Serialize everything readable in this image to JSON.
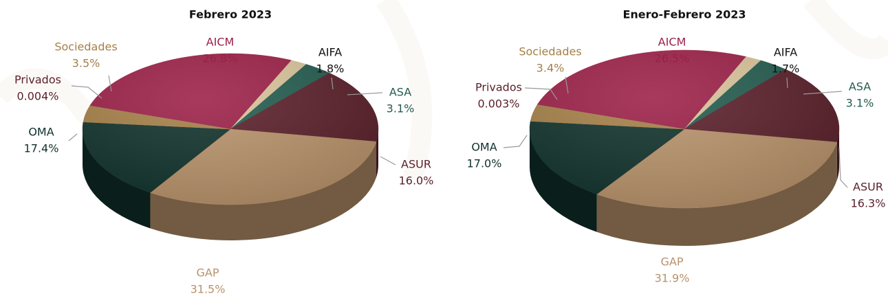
{
  "chart_data": [
    {
      "type": "pie",
      "title": "Febrero 2023",
      "categories": [
        "AICM",
        "AIFA",
        "ASA",
        "ASUR",
        "GAP",
        "OMA",
        "Privados",
        "Sociedades"
      ],
      "values": [
        26.8,
        1.8,
        3.1,
        16.0,
        31.5,
        17.4,
        0.004,
        3.5
      ],
      "value_labels": [
        "26.8%",
        "1.8%",
        "3.1%",
        "16.0%",
        "31.5%",
        "17.4%",
        "0.004%",
        "3.5%"
      ],
      "colors": [
        "#9b1f47",
        "#d9c39a",
        "#235b4e",
        "#5a1f2a",
        "#b8926a",
        "#10312b",
        "#6f6f6f",
        "#a57f47"
      ],
      "label_colors": [
        "#9b1f47",
        "#111111",
        "#235b4e",
        "#5a1f2a",
        "#b8926a",
        "#10312b",
        "#5a1f2a",
        "#a57f47"
      ]
    },
    {
      "type": "pie",
      "title": "Enero-Febrero 2023",
      "categories": [
        "AICM",
        "AIFA",
        "ASA",
        "ASUR",
        "GAP",
        "OMA",
        "Privados",
        "Sociedades"
      ],
      "values": [
        26.5,
        1.7,
        3.1,
        16.3,
        31.9,
        17.0,
        0.003,
        3.4
      ],
      "value_labels": [
        "26.5%",
        "1.7%",
        "3.1%",
        "16.3%",
        "31.9%",
        "17.0%",
        "0.003%",
        "3.4%"
      ],
      "colors": [
        "#9b1f47",
        "#d9c39a",
        "#235b4e",
        "#5a1f2a",
        "#b8926a",
        "#10312b",
        "#6f6f6f",
        "#a57f47"
      ],
      "label_colors": [
        "#9b1f47",
        "#111111",
        "#235b4e",
        "#5a1f2a",
        "#b8926a",
        "#10312b",
        "#5a1f2a",
        "#a57f47"
      ]
    }
  ]
}
